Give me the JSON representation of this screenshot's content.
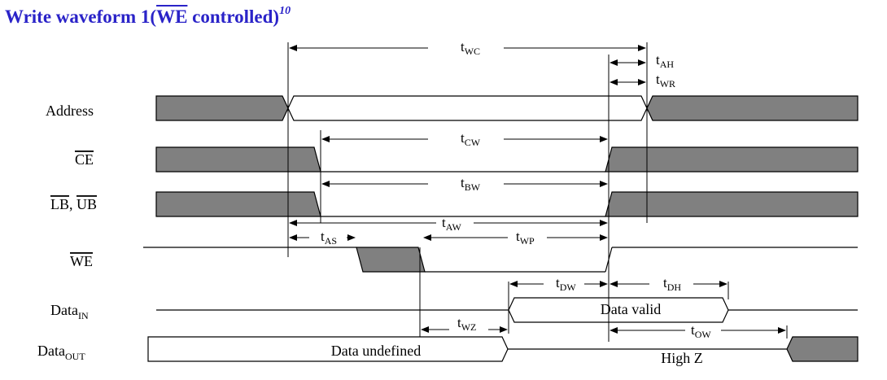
{
  "title": {
    "prefix": "Write waveform 1(",
    "overline": "WE",
    "suffix": " controlled)",
    "footnote": "10"
  },
  "signals": {
    "address": "Address",
    "ce": "CE",
    "lb": "LB",
    "sep": ", ",
    "ub": "UB",
    "we": "WE",
    "data_in": {
      "main": "Data",
      "sub": "IN"
    },
    "data_out": {
      "main": "Data",
      "sub": "OUT"
    }
  },
  "timings": {
    "wc": {
      "sym": "t",
      "sub": "WC"
    },
    "ah": {
      "sym": "t",
      "sub": "AH"
    },
    "wr": {
      "sym": "t",
      "sub": "WR"
    },
    "cw": {
      "sym": "t",
      "sub": "CW"
    },
    "bw": {
      "sym": "t",
      "sub": "BW"
    },
    "aw": {
      "sym": "t",
      "sub": "AW"
    },
    "as": {
      "sym": "t",
      "sub": "AS"
    },
    "wp": {
      "sym": "t",
      "sub": "WP"
    },
    "dw": {
      "sym": "t",
      "sub": "DW"
    },
    "dh": {
      "sym": "t",
      "sub": "DH"
    },
    "wz": {
      "sym": "t",
      "sub": "WZ"
    },
    "ow": {
      "sym": "t",
      "sub": "OW"
    }
  },
  "annotations": {
    "data_valid": "Data valid",
    "data_undefined": "Data undefined",
    "high_z": "High Z"
  },
  "colors": {
    "title": "#2a23c8",
    "fill": "#808080",
    "line": "#000000"
  }
}
